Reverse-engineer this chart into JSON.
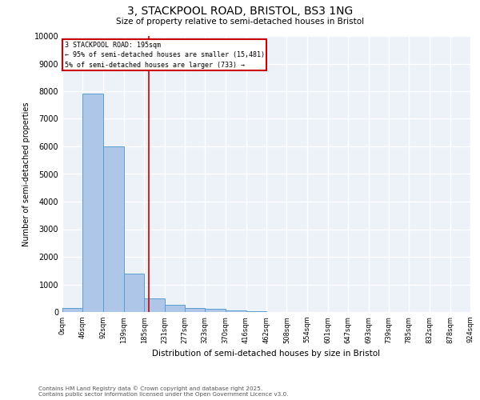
{
  "title": "3, STACKPOOL ROAD, BRISTOL, BS3 1NG",
  "subtitle": "Size of property relative to semi-detached houses in Bristol",
  "xlabel": "Distribution of semi-detached houses by size in Bristol",
  "ylabel": "Number of semi-detached properties",
  "bin_edges": [
    0,
    46,
    92,
    139,
    185,
    231,
    277,
    323,
    370,
    416,
    462,
    508,
    554,
    601,
    647,
    693,
    739,
    785,
    832,
    878,
    924
  ],
  "bin_labels": [
    "0sqm",
    "46sqm",
    "92sqm",
    "139sqm",
    "185sqm",
    "231sqm",
    "277sqm",
    "323sqm",
    "370sqm",
    "416sqm",
    "462sqm",
    "508sqm",
    "554sqm",
    "601sqm",
    "647sqm",
    "693sqm",
    "739sqm",
    "785sqm",
    "832sqm",
    "878sqm",
    "924sqm"
  ],
  "counts": [
    150,
    7900,
    6000,
    1400,
    500,
    250,
    150,
    120,
    50,
    15,
    8,
    4,
    2,
    1,
    1,
    0,
    0,
    0,
    0,
    0
  ],
  "bar_color": "#aec6e8",
  "bar_edge_color": "#5a9fd4",
  "property_size": 195,
  "vline_color": "#cc0000",
  "annotation_line1": "3 STACKPOOL ROAD: 195sqm",
  "annotation_line2": "← 95% of semi-detached houses are smaller (15,481)",
  "annotation_line3": "5% of semi-detached houses are larger (733) →",
  "annotation_box_color": "#cc0000",
  "ylim": [
    0,
    10000
  ],
  "yticks": [
    0,
    1000,
    2000,
    3000,
    4000,
    5000,
    6000,
    7000,
    8000,
    9000,
    10000
  ],
  "background_color": "#edf2f9",
  "grid_color": "#ffffff",
  "footer_line1": "Contains HM Land Registry data © Crown copyright and database right 2025.",
  "footer_line2": "Contains public sector information licensed under the Open Government Licence v3.0."
}
